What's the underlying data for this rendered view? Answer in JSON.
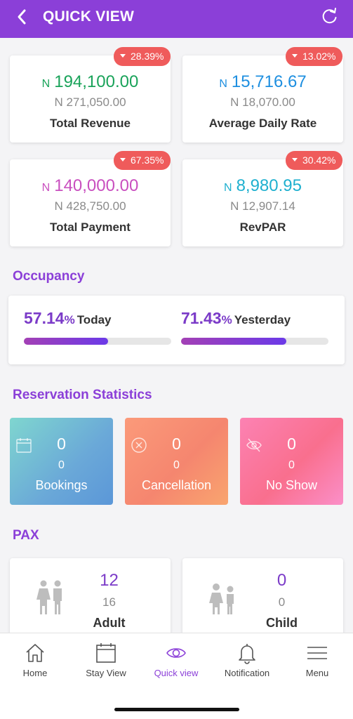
{
  "header": {
    "title": "QUICK VIEW",
    "back_icon": "chevron-left-icon",
    "refresh_icon": "refresh-icon"
  },
  "kpis": [
    {
      "currency": "N",
      "value": "194,100.00",
      "previous": "N 271,050.00",
      "label": "Total Revenue",
      "change": "28.39%",
      "color": "#1aa35a"
    },
    {
      "currency": "N",
      "value": "15,716.67",
      "previous": "N 18,070.00",
      "label": "Average Daily Rate",
      "change": "13.02%",
      "color": "#1e8fe0"
    },
    {
      "currency": "N",
      "value": "140,000.00",
      "previous": "N 428,750.00",
      "label": "Total Payment",
      "change": "67.35%",
      "color": "#c94fbf"
    },
    {
      "currency": "N",
      "value": "8,980.95",
      "previous": "N 12,907.14",
      "label": "RevPAR",
      "change": "30.42%",
      "color": "#1fb0cf"
    }
  ],
  "occupancy": {
    "title": "Occupancy",
    "today": {
      "value": "57.14",
      "unit": "%",
      "label": "Today",
      "fill": 0.5714
    },
    "yesterday": {
      "value": "71.43",
      "unit": "%",
      "label": "Yesterday",
      "fill": 0.7143
    }
  },
  "reservations": {
    "title": "Reservation Statistics",
    "items": [
      {
        "count": "0",
        "sub": "0",
        "label": "Bookings",
        "icon": "calendar-icon"
      },
      {
        "count": "0",
        "sub": "0",
        "label": "Cancellation",
        "icon": "cancel-circle-icon"
      },
      {
        "count": "0",
        "sub": "0",
        "label": "No Show",
        "icon": "eye-off-icon"
      }
    ]
  },
  "pax": {
    "title": "PAX",
    "items": [
      {
        "count": "12",
        "sub": "16",
        "label": "Adult",
        "icon": "adult-couple-icon"
      },
      {
        "count": "0",
        "sub": "0",
        "label": "Child",
        "icon": "child-couple-icon"
      }
    ]
  },
  "tabs": [
    {
      "label": "Home",
      "icon": "home-icon",
      "active": false
    },
    {
      "label": "Stay View",
      "icon": "calendar-icon",
      "active": false
    },
    {
      "label": "Quick view",
      "icon": "eye-icon",
      "active": true
    },
    {
      "label": "Notification",
      "icon": "bell-icon",
      "active": false
    },
    {
      "label": "Menu",
      "icon": "menu-icon",
      "active": false
    }
  ]
}
